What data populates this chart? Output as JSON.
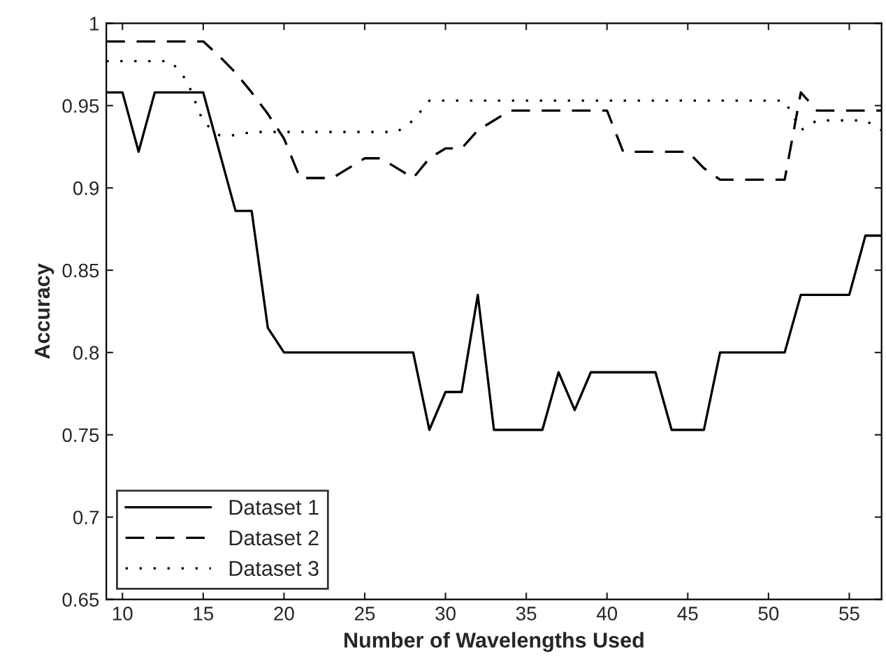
{
  "chart_data": {
    "type": "line",
    "xlabel": "Number of Wavelengths Used",
    "ylabel": "Accuracy",
    "x": [
      9,
      10,
      11,
      12,
      13,
      14,
      15,
      16,
      17,
      18,
      19,
      20,
      21,
      22,
      23,
      24,
      25,
      26,
      27,
      28,
      29,
      30,
      31,
      32,
      33,
      34,
      35,
      36,
      37,
      38,
      39,
      40,
      41,
      42,
      43,
      44,
      45,
      46,
      47,
      48,
      49,
      50,
      51,
      52,
      53,
      54,
      55,
      56,
      57
    ],
    "series": [
      {
        "name": "Dataset 1",
        "color": "#000000",
        "line_style": "solid",
        "values": [
          0.958,
          0.958,
          0.922,
          0.958,
          0.958,
          0.958,
          0.958,
          0.922,
          0.886,
          0.886,
          0.815,
          0.8,
          0.8,
          0.8,
          0.8,
          0.8,
          0.8,
          0.8,
          0.8,
          0.8,
          0.753,
          0.776,
          0.776,
          0.835,
          0.753,
          0.753,
          0.753,
          0.753,
          0.788,
          0.765,
          0.788,
          0.788,
          0.788,
          0.788,
          0.788,
          0.753,
          0.753,
          0.753,
          0.8,
          0.8,
          0.8,
          0.8,
          0.8,
          0.835,
          0.835,
          0.835,
          0.835,
          0.871,
          0.871
        ]
      },
      {
        "name": "Dataset 2",
        "color": "#000000",
        "line_style": "dashed",
        "values": [
          0.989,
          0.989,
          0.989,
          0.989,
          0.989,
          0.989,
          0.989,
          0.98,
          0.97,
          0.958,
          0.945,
          0.93,
          0.906,
          0.906,
          0.906,
          0.912,
          0.918,
          0.918,
          0.912,
          0.906,
          0.918,
          0.924,
          0.924,
          0.935,
          0.941,
          0.947,
          0.947,
          0.947,
          0.947,
          0.947,
          0.947,
          0.947,
          0.922,
          0.922,
          0.922,
          0.922,
          0.922,
          0.912,
          0.905,
          0.905,
          0.905,
          0.905,
          0.905,
          0.958,
          0.947,
          0.947,
          0.947,
          0.947,
          0.947
        ]
      },
      {
        "name": "Dataset 3",
        "color": "#000000",
        "line_style": "dotted",
        "values": [
          0.977,
          0.977,
          0.977,
          0.977,
          0.977,
          0.965,
          0.94,
          0.932,
          0.932,
          0.934,
          0.934,
          0.934,
          0.934,
          0.934,
          0.934,
          0.934,
          0.934,
          0.934,
          0.934,
          0.941,
          0.953,
          0.953,
          0.953,
          0.953,
          0.953,
          0.953,
          0.953,
          0.953,
          0.953,
          0.953,
          0.953,
          0.953,
          0.953,
          0.953,
          0.953,
          0.953,
          0.953,
          0.953,
          0.953,
          0.953,
          0.953,
          0.953,
          0.953,
          0.935,
          0.941,
          0.941,
          0.941,
          0.941,
          0.935
        ]
      }
    ],
    "xlim": [
      9,
      57
    ],
    "ylim": [
      0.65,
      1
    ],
    "xticks": [
      10,
      15,
      20,
      25,
      30,
      35,
      40,
      45,
      50,
      55
    ],
    "yticks": [
      0.65,
      {
        "value": 0.7,
        "label": "0.7"
      },
      0.75,
      {
        "value": 0.8,
        "label": "0.8"
      },
      0.85,
      {
        "value": 0.9,
        "label": "0.9"
      },
      0.95,
      {
        "value": 1,
        "label": "1"
      }
    ],
    "grid": false,
    "legend": "bottom left",
    "marker": "none"
  }
}
